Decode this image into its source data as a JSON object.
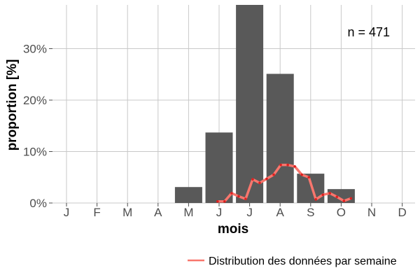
{
  "chart_data": {
    "type": "bar",
    "categories": [
      "J",
      "F",
      "M",
      "A",
      "M",
      "J",
      "J",
      "A",
      "S",
      "O",
      "N",
      "D"
    ],
    "values": [
      0,
      0,
      0,
      0,
      3.1,
      13.7,
      38.5,
      25.1,
      5.7,
      2.7,
      0,
      0
    ],
    "xlabel": "mois",
    "ylabel": "proportion [%]",
    "ylim": [
      0,
      38.5
    ],
    "yticks": [
      0,
      10,
      20,
      30
    ],
    "ytick_labels": [
      "0%",
      "10%",
      "20%",
      "30%"
    ],
    "grid": true,
    "annotation": "n = 471",
    "series": [
      {
        "name": "Distribution des données par semaine",
        "type": "line",
        "x": [
          4.95,
          5.18,
          5.41,
          5.64,
          5.87,
          6.1,
          6.33,
          6.56,
          6.79,
          7.02,
          7.25,
          7.48,
          7.71,
          7.94,
          8.17,
          8.4,
          8.63,
          8.86,
          9.09,
          9.32
        ],
        "values": [
          0.3,
          0.3,
          1.9,
          1.3,
          0.8,
          4.6,
          3.9,
          4.7,
          5.5,
          7.4,
          7.4,
          7.1,
          5.5,
          5.0,
          0.7,
          1.6,
          1.9,
          1.2,
          0.4,
          0.9
        ],
        "color": "#f8766d"
      }
    ],
    "colors": {
      "bar": "#595959",
      "line": "#f8766d",
      "points": "#dd1f1f",
      "grid": "#c8c8c8"
    }
  }
}
